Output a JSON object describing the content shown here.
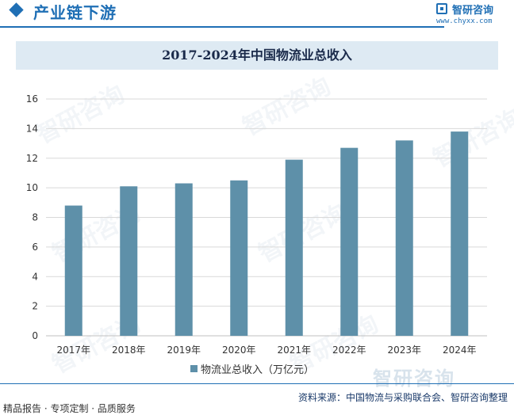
{
  "header": {
    "section_title": "产业链下游",
    "brand_name": "智研咨询",
    "brand_url": "www.chyxx.com"
  },
  "watermark_text": "智研咨询",
  "chart_data": {
    "type": "bar",
    "title": "2017-2024年中国物流业总收入",
    "categories": [
      "2017年",
      "2018年",
      "2019年",
      "2020年",
      "2021年",
      "2022年",
      "2023年",
      "2024年"
    ],
    "series": [
      {
        "name": "物流业总收入（万亿元）",
        "values": [
          8.8,
          10.1,
          10.3,
          10.5,
          11.9,
          12.7,
          13.2,
          13.8
        ],
        "color": "#5e90a9"
      }
    ],
    "ylim": [
      0,
      16
    ],
    "yticks": [
      0,
      2,
      4,
      6,
      8,
      10,
      12,
      14,
      16
    ],
    "grid": true,
    "legend_position": "bottom"
  },
  "footer": {
    "source": "资料来源：中国物流与采购联合会、智研咨询整理",
    "tagline": "精品报告 · 专项定制 · 品质服务"
  }
}
